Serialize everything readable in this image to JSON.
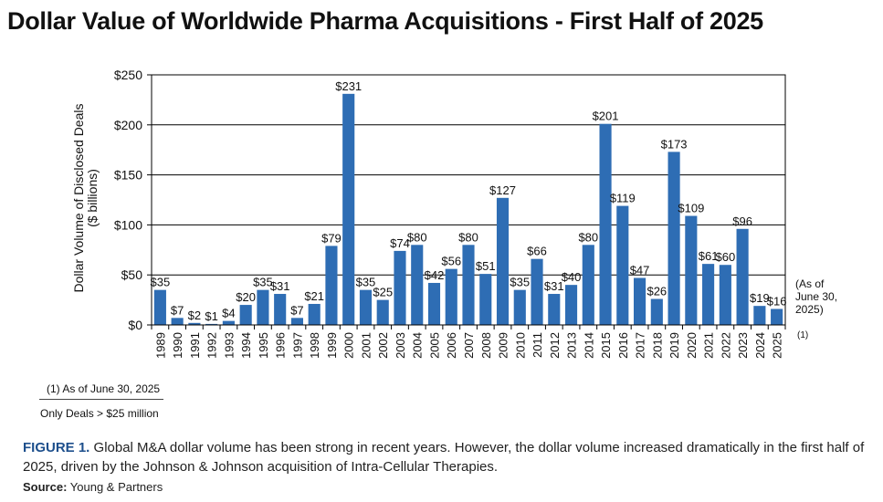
{
  "title": "Dollar Value of Worldwide Pharma Acquisitions - First Half of 2025",
  "chart_data": {
    "type": "bar",
    "title": "Dollar Value of Worldwide Pharma Acquisitions - First Half of 2025",
    "ylabel_line1": "Dollar Volume of Disclosed Deals",
    "ylabel_line2": "($ billions)",
    "xlabel": "",
    "ylim": [
      0,
      250
    ],
    "yticks": [
      0,
      50,
      100,
      150,
      200,
      250
    ],
    "ytick_labels": [
      "$0",
      "$50",
      "$100",
      "$150",
      "$200",
      "$250"
    ],
    "grid": "horizontal",
    "bar_color": "#2e6db4",
    "categories": [
      "1989",
      "1990",
      "1991",
      "1992",
      "1993",
      "1994",
      "1995",
      "1996",
      "1997",
      "1998",
      "1999",
      "2000",
      "2001",
      "2002",
      "2003",
      "2004",
      "2005",
      "2006",
      "2007",
      "2008",
      "2009",
      "2010",
      "2011",
      "2012",
      "2013",
      "2014",
      "2015",
      "2016",
      "2017",
      "2018",
      "2019",
      "2020",
      "2021",
      "2022",
      "2023",
      "2024",
      "2025"
    ],
    "values": [
      35,
      7,
      2,
      1,
      4,
      20,
      35,
      31,
      7,
      21,
      79,
      231,
      35,
      25,
      74,
      80,
      42,
      56,
      80,
      51,
      127,
      35,
      66,
      31,
      40,
      80,
      201,
      119,
      47,
      26,
      173,
      109,
      61,
      60,
      96,
      19,
      16
    ],
    "data_labels": [
      "$35",
      "$7",
      "$2",
      "$1",
      "$4",
      "$20",
      "$35",
      "$31",
      "$7",
      "$21",
      "$79",
      "$231",
      "$35",
      "$25",
      "$74",
      "$80",
      "$42",
      "$56",
      "$80",
      "$51",
      "$127",
      "$35",
      "$66",
      "$31",
      "$40",
      "$80",
      "$201",
      "$119",
      "$47",
      "$26",
      "$173",
      "$109",
      "$61",
      "$60",
      "$96",
      "$19",
      "$16"
    ]
  },
  "side_note": {
    "line1": "(As of",
    "line2": "June 30,",
    "line3": "2025)",
    "ref": "(1)"
  },
  "footnotes": {
    "note1": "(1) As of June 30, 2025",
    "note2": "Only Deals > $25 million"
  },
  "caption": {
    "label": "FIGURE 1.",
    "text": "Global M&A dollar volume has been strong in recent years. However, the dollar volume increased dramatically in the first half of 2025, driven by the Johnson & Johnson acquisition of Intra-Cellular Therapies."
  },
  "source": {
    "label": "Source:",
    "text": "Young & Partners"
  }
}
